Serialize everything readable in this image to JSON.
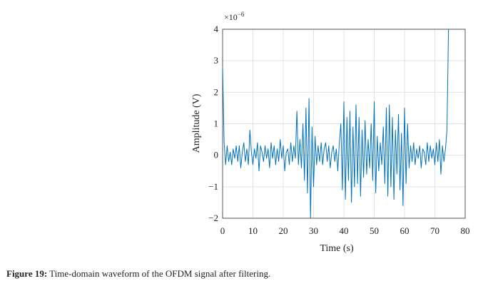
{
  "chart_data": {
    "type": "line",
    "x_label": "Time (s)",
    "y_label": "Amplitude (V)",
    "y_multiplier": {
      "base": "×10",
      "exponent": "−6"
    },
    "xlim": [
      0,
      80
    ],
    "xticks": [
      0,
      10,
      20,
      30,
      40,
      50,
      60,
      70,
      80
    ],
    "ylim": [
      -2,
      4
    ],
    "yticks": [
      {
        "value": -2,
        "label": "−2"
      },
      {
        "value": -1,
        "label": "−1"
      },
      0,
      1,
      2,
      3,
      4
    ],
    "grid": true,
    "series": [
      {
        "color": "#0072bd",
        "x": [
          0,
          0.5,
          1,
          1.5,
          2,
          2.5,
          3,
          3.5,
          4,
          4.5,
          5,
          5.5,
          6,
          6.5,
          7,
          7.5,
          8,
          8.5,
          9,
          9.5,
          10,
          10.5,
          11,
          11.5,
          12,
          12.5,
          13,
          13.5,
          14,
          14.5,
          15,
          15.5,
          16,
          16.5,
          17,
          17.5,
          18,
          18.5,
          19,
          19.5,
          20,
          20.5,
          21,
          21.5,
          22,
          22.5,
          23,
          23.5,
          24,
          24.5,
          25,
          25.5,
          26,
          26.5,
          27,
          27.5,
          28,
          28.5,
          29,
          29.5,
          30,
          30.5,
          31,
          31.5,
          32,
          32.5,
          33,
          33.5,
          34,
          34.5,
          35,
          35.5,
          36,
          36.5,
          37,
          37.5,
          38,
          38.5,
          39,
          39.5,
          40,
          40.5,
          41,
          41.5,
          42,
          42.5,
          43,
          43.5,
          44,
          44.5,
          45,
          45.5,
          46,
          46.5,
          47,
          47.5,
          48,
          48.5,
          49,
          49.5,
          50,
          50.5,
          51,
          51.5,
          52,
          52.5,
          53,
          53.5,
          54,
          54.5,
          55,
          55.5,
          56,
          56.5,
          57,
          57.5,
          58,
          58.5,
          59,
          59.5,
          60,
          60.5,
          61,
          61.5,
          62,
          62.5,
          63,
          63.5,
          64,
          64.5,
          65,
          65.5,
          66,
          66.5,
          67,
          67.5,
          68,
          68.5,
          69,
          69.5,
          70,
          70.5,
          71,
          71.5,
          72,
          72.5,
          73,
          73.5,
          74,
          74.5
        ],
        "values": [
          2.8,
          0.4,
          -0.3,
          0.3,
          -0.2,
          0.1,
          -0.3,
          0.2,
          -0.1,
          0.3,
          -0.2,
          0.3,
          -0.4,
          0.1,
          0.4,
          -0.2,
          0.2,
          -0.3,
          0.8,
          0.1,
          -0.3,
          0.2,
          -0.1,
          0.4,
          -0.5,
          0.3,
          0.1,
          -0.2,
          0.3,
          -0.1,
          0.2,
          -0.4,
          0.4,
          -0.1,
          0.3,
          -0.3,
          0.2,
          -0.2,
          0.5,
          -0.1,
          0.3,
          -0.5,
          0.1,
          0.2,
          -0.3,
          0.4,
          -0.2,
          0.3,
          -0.1,
          1.4,
          -0.3,
          0.5,
          -0.4,
          1.0,
          -0.8,
          1.5,
          -1.2,
          1.8,
          -2.0,
          0.9,
          -1.0,
          0.6,
          -0.3,
          0.3,
          -0.2,
          0.4,
          -0.3,
          0.2,
          0.4,
          -0.2,
          0.3,
          -0.4,
          0.1,
          0.3,
          -0.2,
          0.2,
          -0.5,
          0.4,
          1.0,
          -1.1,
          1.7,
          -1.4,
          1.2,
          -0.8,
          1.4,
          -1.5,
          0.9,
          -1.0,
          1.6,
          -0.9,
          1.2,
          -1.3,
          0.8,
          -0.7,
          1.1,
          -0.6,
          0.5,
          -0.4,
          1.0,
          -0.8,
          1.7,
          -1.2,
          0.6,
          -0.5,
          0.4,
          -0.3,
          0.9,
          -0.9,
          1.5,
          -1.3,
          1.6,
          -1.0,
          1.2,
          -1.4,
          0.8,
          -0.6,
          1.3,
          -1.1,
          0.7,
          -1.6,
          1.5,
          -0.9,
          1.0,
          -0.4,
          0.3,
          -0.2,
          0.4,
          -0.3,
          0.2,
          -0.1,
          0.3,
          -0.4,
          0.2,
          0.1,
          -0.3,
          0.4,
          -0.2,
          0.3,
          -0.1,
          0.2,
          -0.3,
          0.4,
          -0.2,
          0.5,
          -0.6,
          0.3,
          -0.2,
          0.2,
          0.8,
          4.0
        ]
      }
    ]
  },
  "caption": {
    "label": "Figure 19:",
    "text": " Time-domain waveform of the OFDM signal after filtering."
  }
}
